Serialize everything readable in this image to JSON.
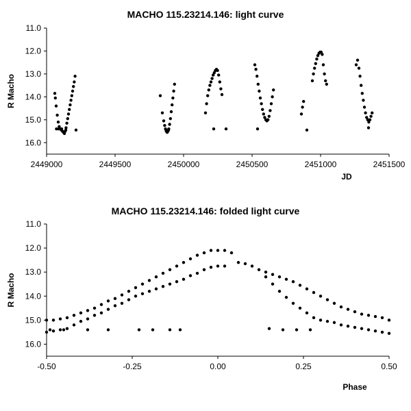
{
  "chart_data": [
    {
      "type": "scatter",
      "title": "MACHO 115.23214.146: light curve",
      "xlabel": "JD",
      "ylabel": "R Macho",
      "xlim": [
        2449000,
        2451500
      ],
      "ylim": [
        11.0,
        16.5
      ],
      "y_inverted": true,
      "grid": false,
      "xticks": [
        "2449000",
        "2449500",
        "2450000",
        "2450500",
        "2451000",
        "2451500"
      ],
      "yticks": [
        "11.0",
        "12.0",
        "13.0",
        "14.0",
        "15.0",
        "16.0"
      ],
      "series": [
        {
          "color": "#000000",
          "points": [
            [
              2449060,
              13.85
            ],
            [
              2449064,
              14.05
            ],
            [
              2449070,
              14.4
            ],
            [
              2449078,
              14.8
            ],
            [
              2449085,
              15.1
            ],
            [
              2449092,
              15.3
            ],
            [
              2449100,
              15.4
            ],
            [
              2449108,
              15.45
            ],
            [
              2449116,
              15.5
            ],
            [
              2449124,
              15.55
            ],
            [
              2449130,
              15.6
            ],
            [
              2449136,
              15.5
            ],
            [
              2449142,
              15.35
            ],
            [
              2449148,
              15.15
            ],
            [
              2449154,
              14.95
            ],
            [
              2449160,
              14.75
            ],
            [
              2449166,
              14.55
            ],
            [
              2449172,
              14.35
            ],
            [
              2449178,
              14.15
            ],
            [
              2449184,
              13.95
            ],
            [
              2449190,
              13.75
            ],
            [
              2449196,
              13.55
            ],
            [
              2449202,
              13.35
            ],
            [
              2449208,
              13.1
            ],
            [
              2449072,
              15.4
            ],
            [
              2449088,
              15.4
            ],
            [
              2449110,
              15.4
            ],
            [
              2449140,
              15.45
            ],
            [
              2449215,
              15.45
            ],
            [
              2449830,
              13.95
            ],
            [
              2449845,
              14.7
            ],
            [
              2449855,
              15.05
            ],
            [
              2449862,
              15.25
            ],
            [
              2449868,
              15.4
            ],
            [
              2449874,
              15.5
            ],
            [
              2449880,
              15.55
            ],
            [
              2449886,
              15.5
            ],
            [
              2449892,
              15.4
            ],
            [
              2449898,
              15.2
            ],
            [
              2449904,
              14.95
            ],
            [
              2449910,
              14.65
            ],
            [
              2449916,
              14.35
            ],
            [
              2449922,
              14.05
            ],
            [
              2449928,
              13.75
            ],
            [
              2449934,
              13.45
            ],
            [
              2449872,
              15.45
            ],
            [
              2449890,
              15.45
            ],
            [
              2450160,
              14.7
            ],
            [
              2450168,
              14.3
            ],
            [
              2450176,
              13.95
            ],
            [
              2450184,
              13.7
            ],
            [
              2450192,
              13.5
            ],
            [
              2450200,
              13.35
            ],
            [
              2450208,
              13.2
            ],
            [
              2450216,
              13.05
            ],
            [
              2450224,
              12.95
            ],
            [
              2450232,
              12.85
            ],
            [
              2450240,
              12.8
            ],
            [
              2450248,
              12.85
            ],
            [
              2450256,
              13.05
            ],
            [
              2450264,
              13.35
            ],
            [
              2450272,
              13.65
            ],
            [
              2450280,
              13.9
            ],
            [
              2450220,
              15.4
            ],
            [
              2450310,
              15.4
            ],
            [
              2450520,
              12.6
            ],
            [
              2450528,
              12.8
            ],
            [
              2450536,
              13.1
            ],
            [
              2450544,
              13.45
            ],
            [
              2450552,
              13.75
            ],
            [
              2450560,
              14.05
            ],
            [
              2450568,
              14.3
            ],
            [
              2450576,
              14.55
            ],
            [
              2450584,
              14.75
            ],
            [
              2450592,
              14.9
            ],
            [
              2450600,
              15.0
            ],
            [
              2450608,
              15.05
            ],
            [
              2450616,
              15.0
            ],
            [
              2450624,
              14.85
            ],
            [
              2450632,
              14.6
            ],
            [
              2450640,
              14.3
            ],
            [
              2450648,
              14.0
            ],
            [
              2450656,
              13.7
            ],
            [
              2450540,
              15.4
            ],
            [
              2450860,
              14.75
            ],
            [
              2450868,
              14.45
            ],
            [
              2450876,
              14.2
            ],
            [
              2450900,
              15.45
            ],
            [
              2450940,
              13.3
            ],
            [
              2450948,
              13.0
            ],
            [
              2450956,
              12.75
            ],
            [
              2450964,
              12.55
            ],
            [
              2450972,
              12.35
            ],
            [
              2450980,
              12.2
            ],
            [
              2450988,
              12.1
            ],
            [
              2450996,
              12.05
            ],
            [
              2451004,
              12.05
            ],
            [
              2451012,
              12.15
            ],
            [
              2451020,
              12.6
            ],
            [
              2451028,
              13.0
            ],
            [
              2451036,
              13.3
            ],
            [
              2451044,
              13.45
            ],
            [
              2451260,
              12.6
            ],
            [
              2451270,
              12.4
            ],
            [
              2451280,
              12.75
            ],
            [
              2451288,
              13.1
            ],
            [
              2451296,
              13.5
            ],
            [
              2451304,
              13.85
            ],
            [
              2451312,
              14.15
            ],
            [
              2451320,
              14.45
            ],
            [
              2451328,
              14.7
            ],
            [
              2451336,
              14.9
            ],
            [
              2451344,
              15.0
            ],
            [
              2451352,
              15.1
            ],
            [
              2451360,
              15.0
            ],
            [
              2451368,
              14.85
            ],
            [
              2451376,
              14.7
            ],
            [
              2451350,
              15.35
            ]
          ]
        }
      ]
    },
    {
      "type": "scatter",
      "title": "MACHO 115.23214.146: folded light curve",
      "xlabel": "Phase",
      "ylabel": "R Macho",
      "xlim": [
        -0.5,
        0.5
      ],
      "ylim": [
        11.0,
        16.5
      ],
      "y_inverted": true,
      "grid": false,
      "xticks": [
        "-0.50",
        "-0.25",
        "0.00",
        "0.25",
        "0.50"
      ],
      "yticks": [
        "11.0",
        "12.0",
        "13.0",
        "14.0",
        "15.0",
        "16.0"
      ],
      "series": [
        {
          "color": "#000000",
          "points": [
            [
              -0.5,
              15.0
            ],
            [
              -0.48,
              15.0
            ],
            [
              -0.46,
              14.95
            ],
            [
              -0.44,
              14.9
            ],
            [
              -0.42,
              14.8
            ],
            [
              -0.4,
              14.7
            ],
            [
              -0.38,
              14.6
            ],
            [
              -0.36,
              14.5
            ],
            [
              -0.34,
              14.35
            ],
            [
              -0.32,
              14.2
            ],
            [
              -0.3,
              14.1
            ],
            [
              -0.28,
              13.95
            ],
            [
              -0.26,
              13.8
            ],
            [
              -0.24,
              13.65
            ],
            [
              -0.22,
              13.5
            ],
            [
              -0.2,
              13.35
            ],
            [
              -0.18,
              13.2
            ],
            [
              -0.16,
              13.05
            ],
            [
              -0.14,
              12.9
            ],
            [
              -0.12,
              12.75
            ],
            [
              -0.1,
              12.6
            ],
            [
              -0.08,
              12.45
            ],
            [
              -0.06,
              12.3
            ],
            [
              -0.04,
              12.2
            ],
            [
              -0.02,
              12.1
            ],
            [
              0.0,
              12.1
            ],
            [
              0.02,
              12.1
            ],
            [
              0.04,
              12.2
            ],
            [
              -0.5,
              15.5
            ],
            [
              -0.48,
              15.45
            ],
            [
              -0.46,
              15.4
            ],
            [
              -0.44,
              15.35
            ],
            [
              -0.42,
              15.2
            ],
            [
              -0.4,
              15.05
            ],
            [
              -0.38,
              14.95
            ],
            [
              -0.36,
              14.8
            ],
            [
              -0.34,
              14.7
            ],
            [
              -0.32,
              14.55
            ],
            [
              -0.3,
              14.4
            ],
            [
              -0.28,
              14.3
            ],
            [
              -0.26,
              14.15
            ],
            [
              -0.24,
              14.0
            ],
            [
              -0.22,
              13.9
            ],
            [
              -0.2,
              13.8
            ],
            [
              -0.18,
              13.7
            ],
            [
              -0.16,
              13.6
            ],
            [
              -0.14,
              13.5
            ],
            [
              -0.12,
              13.4
            ],
            [
              -0.1,
              13.3
            ],
            [
              -0.08,
              13.15
            ],
            [
              -0.06,
              13.05
            ],
            [
              -0.04,
              12.9
            ],
            [
              -0.02,
              12.8
            ],
            [
              0.0,
              12.75
            ],
            [
              0.02,
              12.75
            ],
            [
              0.06,
              12.6
            ],
            [
              0.08,
              12.65
            ],
            [
              0.1,
              12.75
            ],
            [
              0.12,
              12.9
            ],
            [
              0.14,
              13.0
            ],
            [
              0.16,
              13.1
            ],
            [
              0.18,
              13.2
            ],
            [
              0.2,
              13.3
            ],
            [
              0.22,
              13.4
            ],
            [
              0.24,
              13.55
            ],
            [
              0.26,
              13.7
            ],
            [
              0.28,
              13.85
            ],
            [
              0.3,
              14.0
            ],
            [
              0.32,
              14.15
            ],
            [
              0.34,
              14.3
            ],
            [
              0.36,
              14.45
            ],
            [
              0.38,
              14.55
            ],
            [
              0.4,
              14.65
            ],
            [
              0.42,
              14.75
            ],
            [
              0.44,
              14.8
            ],
            [
              0.46,
              14.85
            ],
            [
              0.48,
              14.9
            ],
            [
              0.5,
              15.0
            ],
            [
              0.14,
              13.2
            ],
            [
              0.16,
              13.5
            ],
            [
              0.18,
              13.8
            ],
            [
              0.2,
              14.05
            ],
            [
              0.22,
              14.3
            ],
            [
              0.24,
              14.5
            ],
            [
              0.26,
              14.7
            ],
            [
              0.28,
              14.9
            ],
            [
              0.3,
              15.0
            ],
            [
              0.32,
              15.05
            ],
            [
              0.34,
              15.1
            ],
            [
              0.36,
              15.2
            ],
            [
              0.38,
              15.25
            ],
            [
              0.4,
              15.3
            ],
            [
              0.42,
              15.35
            ],
            [
              0.44,
              15.4
            ],
            [
              0.46,
              15.45
            ],
            [
              0.48,
              15.5
            ],
            [
              0.5,
              15.55
            ],
            [
              -0.49,
              15.4
            ],
            [
              -0.45,
              15.4
            ],
            [
              -0.38,
              15.4
            ],
            [
              -0.32,
              15.4
            ],
            [
              -0.23,
              15.4
            ],
            [
              -0.19,
              15.4
            ],
            [
              -0.14,
              15.4
            ],
            [
              -0.11,
              15.4
            ],
            [
              0.15,
              15.35
            ],
            [
              0.19,
              15.4
            ],
            [
              0.23,
              15.4
            ],
            [
              0.27,
              15.4
            ]
          ]
        }
      ]
    }
  ]
}
